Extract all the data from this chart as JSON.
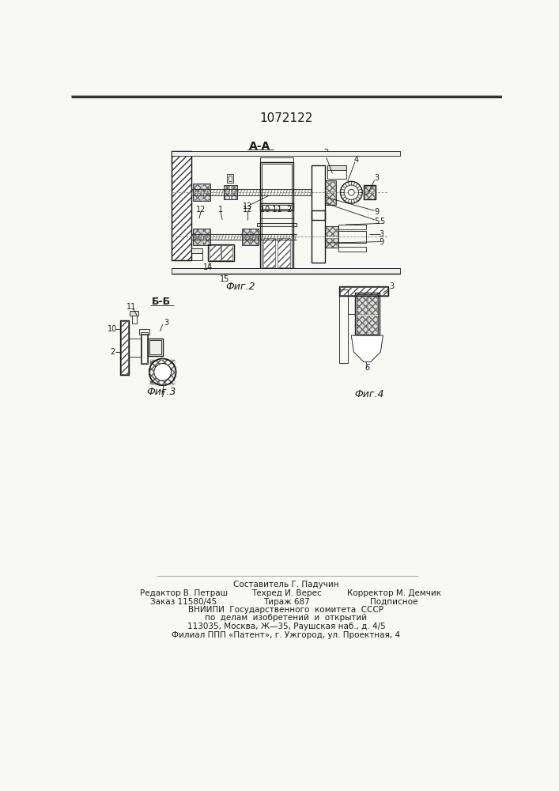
{
  "title": "1072122",
  "bg_color": "#f8f8f5",
  "drawing_color": "#1a1a1a",
  "hatch_color": "#444444",
  "fig2_label": "Фиг.2",
  "fig3_label": "Фиг.3",
  "fig4_label": "Фиг.4",
  "fig_AA": "А-А",
  "fig_BB": "Б-Б",
  "footer": [
    [
      "Составитель Г. Падучин",
      353,
      196
    ],
    [
      "Редактор В. Петраш",
      185,
      182
    ],
    [
      "Техред И. Верес",
      353,
      182
    ],
    [
      "Корректор М. Демчик",
      530,
      182
    ],
    [
      "Заказ 11580/45",
      185,
      168
    ],
    [
      "Тираж 687",
      353,
      168
    ],
    [
      "Подписное",
      530,
      168
    ],
    [
      "ВНИИПИ  Государственного  комитета  СССР",
      353,
      154
    ],
    [
      "по  делам  изобретений  и  открытий",
      353,
      141
    ],
    [
      "113035, Москва, Ж—35, Раушская наб., д. 4/5",
      353,
      127
    ],
    [
      "Филиал ППП «Патент», г. Ужгород, ул. Проектная, 4",
      353,
      113
    ]
  ]
}
